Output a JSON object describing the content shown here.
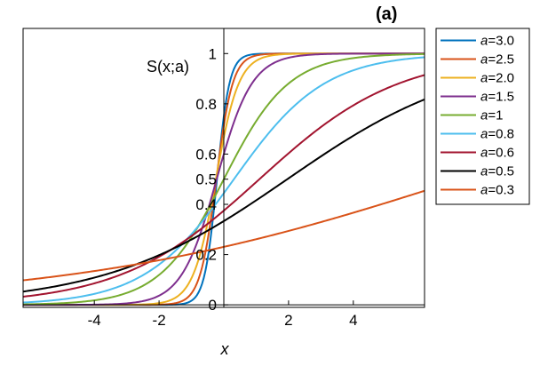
{
  "chart_data": {
    "type": "line",
    "panel_label": "(a)",
    "title": "",
    "xlabel": "x",
    "ylabel": "S(x;a)",
    "xlim": [
      -6.2,
      6.2
    ],
    "ylim": [
      -0.01,
      1.1
    ],
    "x_ticks": [
      -4,
      -2,
      2,
      4
    ],
    "x_tick_labels": [
      "-4",
      "-2",
      "2",
      "4"
    ],
    "y_ticks": [
      0,
      0.2,
      0.4,
      0.5,
      0.6,
      0.8,
      1
    ],
    "y_tick_labels": [
      "0",
      "0.2",
      "0.4",
      "0.5",
      "0.6",
      "0.8",
      "1"
    ],
    "grid": false,
    "legend_position": "outside-right-top",
    "legend_prefix": "a",
    "series": [
      {
        "name": "a=3.0",
        "a_text": "=3.0",
        "a": 3.0,
        "color": "#0072BD"
      },
      {
        "name": "a=2.5",
        "a_text": "=2.5",
        "a": 2.5,
        "color": "#D95319"
      },
      {
        "name": "a=2.0",
        "a_text": "=2.0",
        "a": 2.0,
        "color": "#EDB120"
      },
      {
        "name": "a=1.5",
        "a_text": "=1.5",
        "a": 1.5,
        "color": "#7E2F8E"
      },
      {
        "name": "a=1",
        "a_text": "=1",
        "a": 1.0,
        "color": "#77AC30"
      },
      {
        "name": "a=0.8",
        "a_text": "=0.8",
        "a": 0.8,
        "color": "#4DBEEE"
      },
      {
        "name": "a=0.6",
        "a_text": "=0.6",
        "a": 0.6,
        "color": "#A2142F"
      },
      {
        "name": "a=0.5",
        "a_text": "=0.5",
        "a": 0.5,
        "color": "#000000"
      },
      {
        "name": "a=0.3",
        "a_text": "=0.3",
        "a": 0.3,
        "color": "#D95319"
      }
    ]
  }
}
